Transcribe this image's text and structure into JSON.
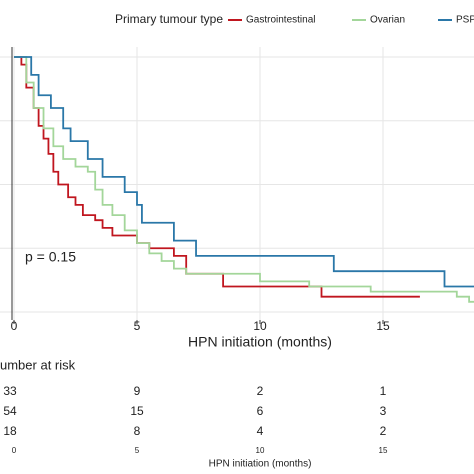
{
  "chart_data": {
    "type": "step",
    "legend_title": "Primary tumour type",
    "legend_position": "top",
    "xlabel": "HPN initiation (months)",
    "annotation": "p = 0.15",
    "xlim": [
      0,
      18.7
    ],
    "ylim": [
      0,
      1
    ],
    "xticks": [
      0,
      5,
      10,
      15
    ],
    "yticks": [
      0,
      0.25,
      0.5,
      0.75,
      1
    ],
    "grid": true,
    "series": [
      {
        "name": "Gastrointestinal",
        "color": "#c0161f",
        "x": [
          0,
          0.3,
          0.5,
          0.8,
          1.0,
          1.2,
          1.4,
          1.6,
          1.8,
          2.2,
          2.5,
          2.8,
          3.3,
          3.6,
          4.0,
          5.0,
          5.5,
          6.5,
          7.0,
          8.5,
          12.5,
          16.5
        ],
        "values": [
          1.0,
          0.97,
          0.88,
          0.8,
          0.73,
          0.68,
          0.62,
          0.55,
          0.5,
          0.45,
          0.42,
          0.38,
          0.36,
          0.33,
          0.3,
          0.27,
          0.25,
          0.22,
          0.15,
          0.1,
          0.06,
          0.06
        ]
      },
      {
        "name": "Ovarian",
        "color": "#a3d69a",
        "x": [
          0,
          0.5,
          0.8,
          1.2,
          1.6,
          2.0,
          2.5,
          3.0,
          3.3,
          3.6,
          4.0,
          4.5,
          5.0,
          5.5,
          6.0,
          6.5,
          7.0,
          10.0,
          12.0,
          14.5,
          18.0,
          18.5,
          18.7
        ],
        "values": [
          1.0,
          0.9,
          0.8,
          0.72,
          0.65,
          0.6,
          0.57,
          0.55,
          0.48,
          0.42,
          0.38,
          0.32,
          0.27,
          0.23,
          0.2,
          0.17,
          0.15,
          0.12,
          0.1,
          0.08,
          0.06,
          0.04,
          0.04
        ]
      },
      {
        "name": "PSP",
        "color": "#2a77a8",
        "x": [
          0,
          0.7,
          1.0,
          1.5,
          2.0,
          2.3,
          3.0,
          3.6,
          4.5,
          5.0,
          5.2,
          6.5,
          7.4,
          13.0,
          17.5,
          18.7
        ],
        "values": [
          1.0,
          0.93,
          0.85,
          0.8,
          0.72,
          0.67,
          0.6,
          0.53,
          0.47,
          0.42,
          0.35,
          0.28,
          0.22,
          0.16,
          0.1,
          0.1
        ]
      }
    ]
  },
  "risk_table": {
    "title": "umber at risk",
    "times": [
      "0",
      "5",
      "10",
      "15"
    ],
    "xlabel": "HPN initiation (months)",
    "rows": [
      [
        "33",
        "9",
        "2",
        "1"
      ],
      [
        "54",
        "15",
        "6",
        "3"
      ],
      [
        "18",
        "8",
        "4",
        "2"
      ]
    ]
  }
}
